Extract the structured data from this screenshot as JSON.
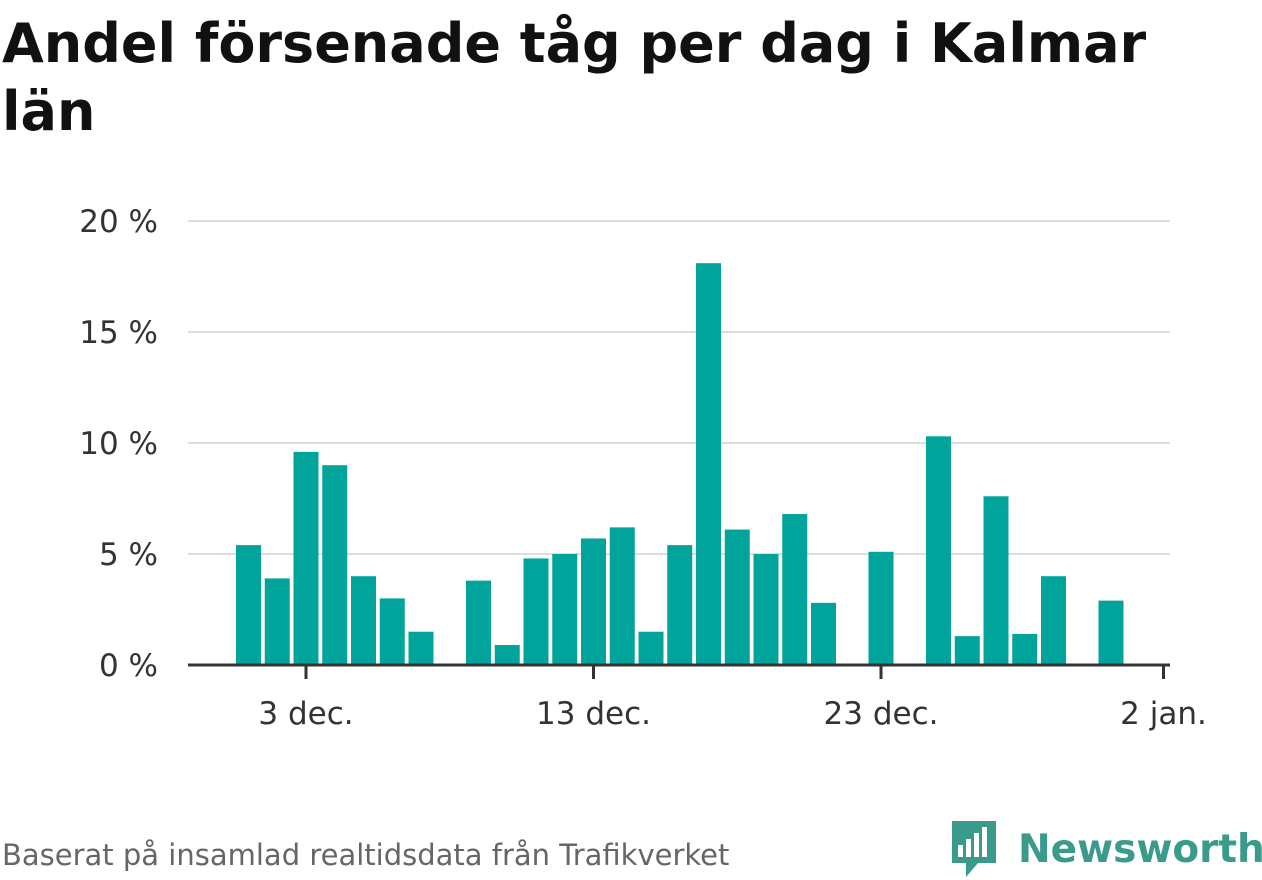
{
  "title": "Andel försenade tåg per dag i Kalmar län",
  "source": "Baserat på insamlad realtidsdata från Trafikverket",
  "brand": {
    "name": "Newsworthy",
    "icon": "newsworthy-logo-icon",
    "color": "#3a9a8c"
  },
  "colors": {
    "bar": "#00a49a",
    "grid": "#dddddd",
    "axis": "#333333"
  },
  "chart_data": {
    "type": "bar",
    "x_axis": {
      "type": "date",
      "ticks": [
        "3 dec.",
        "13 dec.",
        "23 dec.",
        "2 jan."
      ]
    },
    "y_axis": {
      "ticks": [
        "0 %",
        "5 %",
        "10 %",
        "15 %",
        "20 %"
      ],
      "ylim": [
        0,
        20
      ],
      "unit": "%"
    },
    "grid": true,
    "categories": [
      "1 dec.",
      "2 dec.",
      "3 dec.",
      "4 dec.",
      "5 dec.",
      "6 dec.",
      "7 dec.",
      "8 dec.",
      "9 dec.",
      "10 dec.",
      "11 dec.",
      "12 dec.",
      "13 dec.",
      "14 dec.",
      "15 dec.",
      "16 dec.",
      "17 dec.",
      "18 dec.",
      "19 dec.",
      "20 dec.",
      "21 dec.",
      "22 dec.",
      "23 dec.",
      "24 dec.",
      "25 dec.",
      "26 dec.",
      "27 dec.",
      "28 dec.",
      "29 dec.",
      "30 dec.",
      "31 dec.",
      "1 jan."
    ],
    "values": [
      5.4,
      3.9,
      9.6,
      9.0,
      4.0,
      3.0,
      1.5,
      null,
      3.8,
      0.9,
      4.8,
      5.0,
      5.7,
      6.2,
      1.5,
      5.4,
      18.1,
      6.1,
      5.0,
      6.8,
      2.8,
      null,
      5.1,
      null,
      10.3,
      1.3,
      7.6,
      1.4,
      4.0,
      null,
      2.9,
      null
    ],
    "title": "Andel försenade tåg per dag i Kalmar län",
    "xlabel": "",
    "ylabel": ""
  }
}
